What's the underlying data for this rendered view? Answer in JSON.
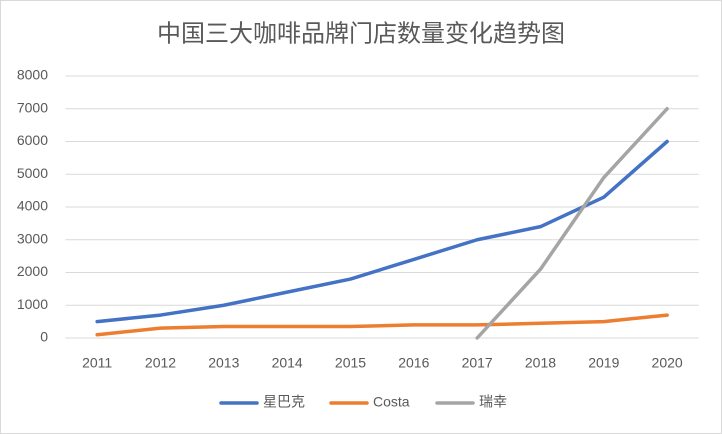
{
  "chart_data": {
    "type": "line",
    "title": "中国三大咖啡品牌门店数量变化趋势图",
    "categories": [
      "2011",
      "2012",
      "2013",
      "2014",
      "2015",
      "2016",
      "2017",
      "2018",
      "2019",
      "2020"
    ],
    "series": [
      {
        "name": "星巴克",
        "color": "#4472c4",
        "values": [
          500,
          700,
          1000,
          1400,
          1800,
          2400,
          3000,
          3400,
          4300,
          6000
        ]
      },
      {
        "name": "Costa",
        "color": "#ed7d31",
        "values": [
          100,
          300,
          350,
          350,
          350,
          400,
          400,
          450,
          500,
          700
        ]
      },
      {
        "name": "瑞幸",
        "color": "#a5a5a5",
        "values": [
          null,
          null,
          null,
          null,
          null,
          null,
          0,
          2100,
          4900,
          7000
        ]
      }
    ],
    "ylim": [
      0,
      8000
    ],
    "yticks": [
      0,
      1000,
      2000,
      3000,
      4000,
      5000,
      6000,
      7000,
      8000
    ],
    "grid": true,
    "legend": "bottom"
  }
}
